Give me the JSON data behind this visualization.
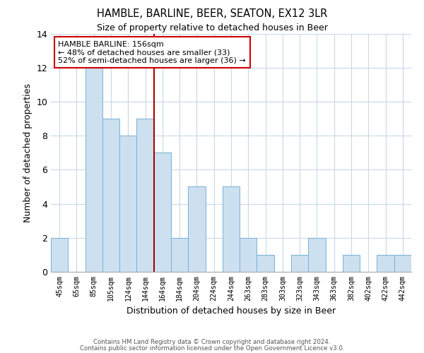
{
  "title": "HAMBLE, BARLINE, BEER, SEATON, EX12 3LR",
  "subtitle": "Size of property relative to detached houses in Beer",
  "xlabel": "Distribution of detached houses by size in Beer",
  "ylabel": "Number of detached properties",
  "bar_color": "#cce0f0",
  "bar_edge_color": "#7ab0d4",
  "background_color": "#ffffff",
  "grid_color": "#c8d8e8",
  "barline_color": "#aa0000",
  "annotation_text": "HAMBLE BARLINE: 156sqm\n← 48% of detached houses are smaller (33)\n52% of semi-detached houses are larger (36) →",
  "annotation_box_color": "#ffffff",
  "annotation_box_edge": "#cc0000",
  "categories": [
    "45sqm",
    "65sqm",
    "85sqm",
    "105sqm",
    "124sqm",
    "144sqm",
    "164sqm",
    "184sqm",
    "204sqm",
    "224sqm",
    "244sqm",
    "263sqm",
    "283sqm",
    "303sqm",
    "323sqm",
    "343sqm",
    "363sqm",
    "382sqm",
    "402sqm",
    "422sqm",
    "442sqm"
  ],
  "values": [
    2,
    0,
    12,
    9,
    8,
    9,
    7,
    2,
    5,
    0,
    5,
    2,
    1,
    0,
    1,
    2,
    0,
    1,
    0,
    1,
    1
  ],
  "ylim": [
    0,
    14
  ],
  "yticks": [
    0,
    2,
    4,
    6,
    8,
    10,
    12,
    14
  ],
  "footer_line1": "Contains HM Land Registry data © Crown copyright and database right 2024.",
  "footer_line2": "Contains public sector information licensed under the Open Government Licence v3.0."
}
